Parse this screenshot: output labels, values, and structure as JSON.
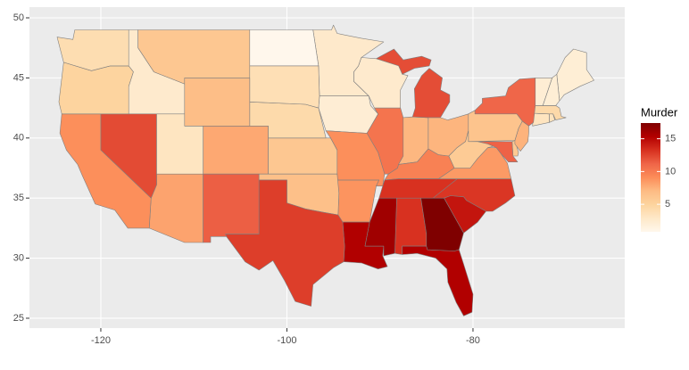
{
  "chart_data": {
    "type": "map",
    "legend_title": "Murder",
    "values": [
      13.2,
      8.1,
      8.8,
      9.0,
      7.9,
      3.3,
      5.9,
      15.4,
      17.4,
      2.6,
      10.4,
      7.2,
      2.2,
      6.0,
      9.7,
      15.4,
      2.1,
      11.3,
      4.4,
      12.1,
      2.7,
      16.1,
      9.0,
      6.0,
      4.3,
      12.2,
      2.1,
      7.4,
      11.4,
      11.1,
      13.0,
      0.8,
      7.3,
      6.6,
      4.9,
      6.3,
      3.4,
      14.4,
      3.8,
      13.2,
      12.7,
      3.2,
      2.2,
      8.5,
      4.0,
      5.7,
      2.6,
      6.8
    ],
    "color_lim": [
      0.8,
      17.4
    ],
    "colors": [
      "#fff7ec",
      "#fee8c8",
      "#fdd49e",
      "#fdbb84",
      "#fc8d59",
      "#ef6548",
      "#d7301f",
      "#b30000",
      "#7f0000"
    ],
    "legend_ticks": [
      5,
      10,
      15
    ],
    "xlim": [
      -127.67,
      -63.69
    ],
    "ylim": [
      24.18,
      50.89
    ],
    "xticks": [
      -120,
      -100,
      -80
    ],
    "yticks": [
      25,
      30,
      35,
      40,
      45,
      50
    ],
    "grid": true,
    "border_color": "#7f7f7f"
  }
}
